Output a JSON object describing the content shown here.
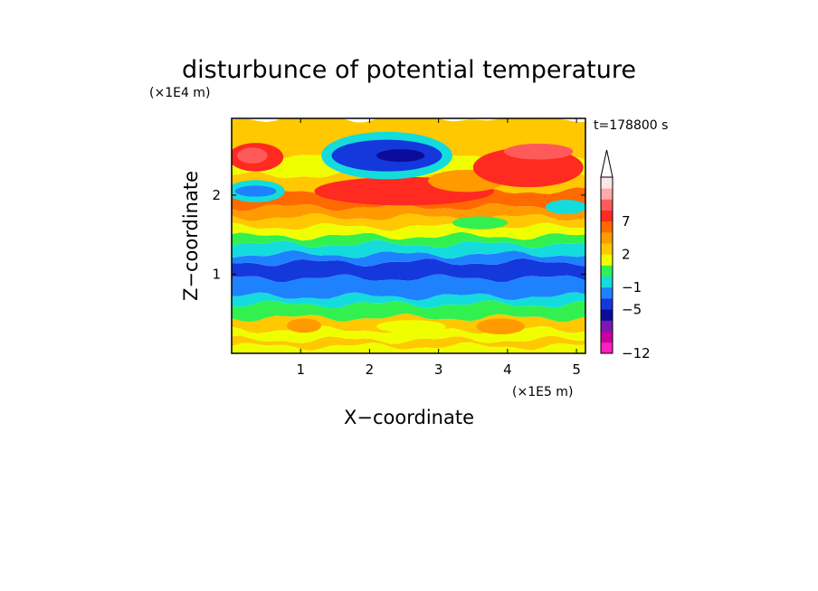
{
  "chart_data": {
    "type": "heatmap",
    "title": "disturbunce of potential temperature",
    "xlabel": "X−coordinate",
    "ylabel": "Z−coordinate",
    "x_scale_label": "(×1E5 m)",
    "y_scale_label": "(×1E4 m)",
    "time_label": "t=178800 s",
    "xlim": [
      0,
      5.13
    ],
    "ylim": [
      0,
      2.97
    ],
    "x_ticks": [
      1,
      2,
      3,
      4,
      5
    ],
    "y_ticks": [
      1,
      2
    ],
    "colorbar": {
      "levels": [
        -12,
        -10,
        -8,
        -6,
        -5,
        -3,
        -1,
        0,
        1,
        2,
        4,
        5,
        7,
        9,
        11
      ],
      "colors": [
        "#ff1fbf",
        "#c800a0",
        "#7a18b4",
        "#0c0c9a",
        "#1438dc",
        "#1e82ff",
        "#14dcdc",
        "#32f050",
        "#f0ff00",
        "#ffc800",
        "#ff9a00",
        "#ff6a00",
        "#ff2a20",
        "#ff5a5a",
        "#ffaaaa",
        "#ffe6e6"
      ],
      "tick_labels": [
        "−12",
        "−5",
        "−1",
        "2",
        "7"
      ],
      "tick_values": [
        -12,
        -5,
        -1,
        2,
        7
      ],
      "extend": "max"
    },
    "bands": [
      {
        "z_top": 0.09,
        "level": 0
      },
      {
        "z_top": 0.17,
        "level": 1
      },
      {
        "z_top": 0.3,
        "level": 0
      },
      {
        "z_top": 0.45,
        "level": 1
      },
      {
        "z_top": 0.62,
        "level": -1
      },
      {
        "z_top": 0.72,
        "level": -3
      },
      {
        "z_top": 0.95,
        "level": -5
      },
      {
        "z_top": 1.15,
        "level": -6
      },
      {
        "z_top": 1.25,
        "level": -5
      },
      {
        "z_top": 1.38,
        "level": -3
      },
      {
        "z_top": 1.48,
        "level": -1
      },
      {
        "z_top": 1.6,
        "level": 0
      },
      {
        "z_top": 1.72,
        "level": 1
      },
      {
        "z_top": 1.85,
        "level": 2
      },
      {
        "z_top": 2.05,
        "level": 4
      },
      {
        "z_top": 2.25,
        "level": 1
      },
      {
        "z_top": 2.5,
        "level": 0
      },
      {
        "z_top": 2.97,
        "level": 1
      }
    ],
    "features": [
      {
        "x": 3.9,
        "z": 0.34,
        "rx": 0.35,
        "rz": 0.1,
        "level": 2
      },
      {
        "x": 1.05,
        "z": 0.35,
        "rx": 0.25,
        "rz": 0.09,
        "level": 2
      },
      {
        "x": 2.6,
        "z": 0.34,
        "rx": 0.5,
        "rz": 0.08,
        "level": 0
      },
      {
        "x": 2.5,
        "z": 2.05,
        "rx": 1.3,
        "rz": 0.18,
        "level": 5
      },
      {
        "x": 3.4,
        "z": 2.18,
        "rx": 0.55,
        "rz": 0.14,
        "level": 2
      },
      {
        "x": 4.3,
        "z": 2.35,
        "rx": 0.8,
        "rz": 0.25,
        "level": 5
      },
      {
        "x": 4.45,
        "z": 2.55,
        "rx": 0.5,
        "rz": 0.1,
        "level": 7
      },
      {
        "x": 0.35,
        "z": 2.48,
        "rx": 0.4,
        "rz": 0.18,
        "level": 5
      },
      {
        "x": 0.3,
        "z": 2.5,
        "rx": 0.22,
        "rz": 0.1,
        "level": 7
      },
      {
        "x": 0.35,
        "z": 2.05,
        "rx": 0.42,
        "rz": 0.14,
        "level": -3
      },
      {
        "x": 0.35,
        "z": 2.05,
        "rx": 0.3,
        "rz": 0.07,
        "level": -5
      },
      {
        "x": 2.25,
        "z": 2.5,
        "rx": 0.95,
        "rz": 0.3,
        "level": -3
      },
      {
        "x": 2.25,
        "z": 2.5,
        "rx": 0.8,
        "rz": 0.2,
        "level": -6
      },
      {
        "x": 2.45,
        "z": 2.5,
        "rx": 0.35,
        "rz": 0.08,
        "level": -8
      },
      {
        "x": 4.85,
        "z": 1.85,
        "rx": 0.3,
        "rz": 0.09,
        "level": -3
      },
      {
        "x": 3.6,
        "z": 1.65,
        "rx": 0.4,
        "rz": 0.08,
        "level": -1
      }
    ]
  }
}
